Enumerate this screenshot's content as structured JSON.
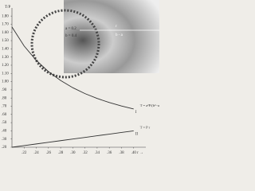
{
  "chart_data": {
    "type": "line",
    "y_label": "T/P",
    "x_label": "r →",
    "inset": {
      "a": "a = 0.2",
      "b": "b = 0.4",
      "r": "r",
      "ba": "b - a"
    },
    "x": [
      0.2,
      0.22,
      0.24,
      0.26,
      0.28,
      0.3,
      0.32,
      0.34,
      0.36,
      0.38,
      0.4
    ],
    "series": [
      {
        "name": "I",
        "equation": "T = a²P/(b²−a²) (1 + b²/r²)",
        "color": "#333333",
        "values": [
          1.667,
          1.435,
          1.259,
          1.122,
          1.014,
          0.926,
          0.854,
          0.795,
          0.745,
          0.703,
          0.667
        ]
      },
      {
        "name": "II",
        "equation": "T = P r",
        "color": "#333333",
        "values": [
          0.2,
          0.22,
          0.24,
          0.26,
          0.28,
          0.3,
          0.32,
          0.34,
          0.36,
          0.38,
          0.4
        ]
      }
    ],
    "xlim": [
      0.2,
      0.42
    ],
    "ylim": [
      0.2,
      1.85
    ],
    "xticks": [
      {
        "value": 0.22,
        "label": ".22"
      },
      {
        "value": 0.24,
        "label": ".24"
      },
      {
        "value": 0.26,
        "label": ".26"
      },
      {
        "value": 0.28,
        "label": ".28"
      },
      {
        "value": 0.3,
        "label": ".30"
      },
      {
        "value": 0.32,
        "label": ".32"
      },
      {
        "value": 0.34,
        "label": ".34"
      },
      {
        "value": 0.36,
        "label": ".36"
      },
      {
        "value": 0.38,
        "label": ".38"
      },
      {
        "value": 0.4,
        "label": ".40"
      }
    ],
    "yticks": [
      {
        "value": 1.8,
        "label": "1.80"
      },
      {
        "value": 1.7,
        "label": "1.70"
      },
      {
        "value": 1.6,
        "label": "1.60"
      },
      {
        "value": 1.5,
        "label": "1.50"
      },
      {
        "value": 1.4,
        "label": "1.40"
      },
      {
        "value": 1.3,
        "label": "1.30"
      },
      {
        "value": 1.2,
        "label": "1.20"
      },
      {
        "value": 1.1,
        "label": "1.10"
      },
      {
        "value": 1.0,
        "label": "1.00"
      },
      {
        "value": 0.9,
        "label": ".90"
      },
      {
        "value": 0.8,
        "label": ".80"
      },
      {
        "value": 0.7,
        "label": ".70"
      },
      {
        "value": 0.6,
        "label": ".60"
      },
      {
        "value": 0.5,
        "label": ".50"
      },
      {
        "value": 0.4,
        "label": ".40"
      },
      {
        "value": 0.3,
        "label": ".30"
      },
      {
        "value": 0.2,
        "label": ".20"
      }
    ]
  }
}
